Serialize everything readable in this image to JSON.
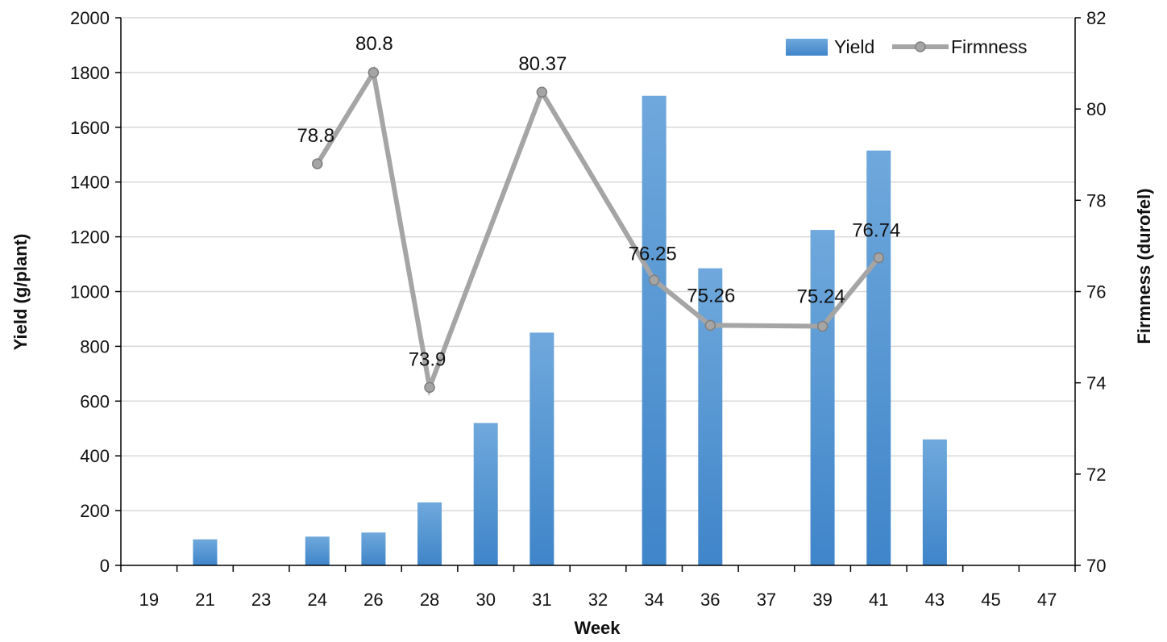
{
  "chart_data": {
    "type": "bar",
    "title": "",
    "categories": [
      "19",
      "21",
      "23",
      "24",
      "26",
      "28",
      "30",
      "31",
      "32",
      "34",
      "36",
      "37",
      "39",
      "41",
      "43",
      "45",
      "47"
    ],
    "xlabel": "Week",
    "ylabel": "Yield (g/plant)",
    "y2label": "Firmness (durofel)",
    "ylim": [
      0,
      2000
    ],
    "y2lim": [
      70,
      82
    ],
    "yticks": [
      0,
      200,
      400,
      600,
      800,
      1000,
      1200,
      1400,
      1600,
      1800,
      2000
    ],
    "y2ticks": [
      70,
      72,
      74,
      76,
      78,
      80,
      82
    ],
    "grid": true,
    "legend_position": "top-right",
    "series": [
      {
        "name": "Yield",
        "type": "bar",
        "axis": "left",
        "color": "#5B9BD5",
        "values": [
          0,
          95,
          0,
          105,
          120,
          230,
          520,
          850,
          0,
          1715,
          1085,
          0,
          1225,
          1515,
          460,
          0,
          0
        ]
      },
      {
        "name": "Firmness",
        "type": "line",
        "axis": "right",
        "color": "#A5A5A5",
        "values": [
          null,
          null,
          null,
          78.8,
          80.8,
          73.9,
          null,
          80.37,
          null,
          76.25,
          75.26,
          null,
          75.24,
          76.74,
          null,
          null,
          null
        ],
        "labels": [
          null,
          null,
          null,
          "78.8",
          "80.8",
          "73.9",
          null,
          "80.37",
          null,
          "76.25",
          "75.26",
          null,
          "75.24",
          "76.74",
          null,
          null,
          null
        ]
      }
    ]
  }
}
